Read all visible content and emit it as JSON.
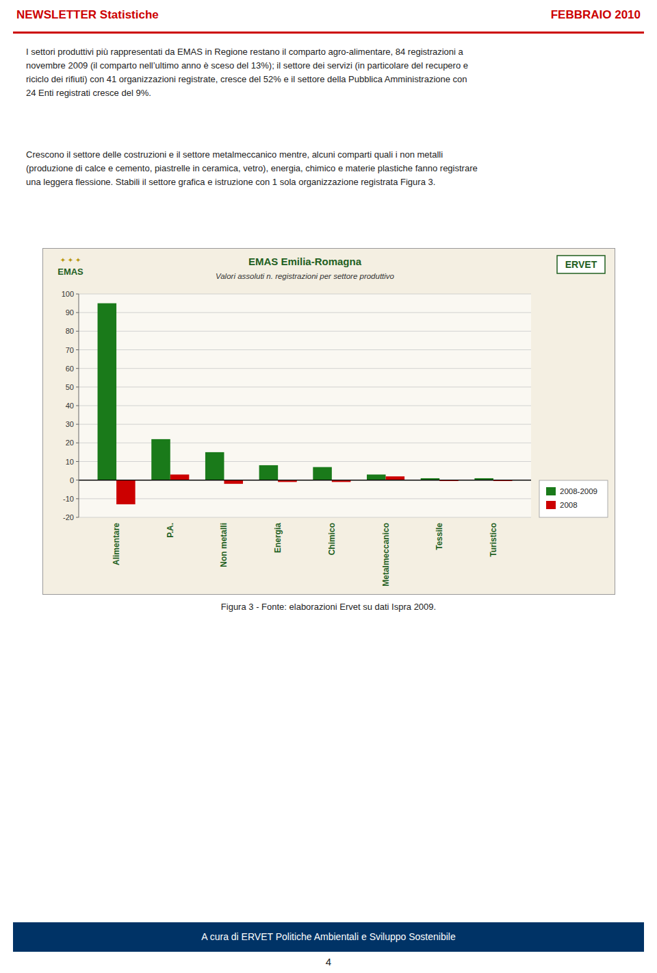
{
  "header_left": "NEWSLETTER Statistiche",
  "header_right": "FEBBRAIO 2010",
  "paragraphs": [
    "I settori produttivi più rappresentati da EMAS in Regione restano il comparto agro-alimentare, 84 registrazioni a\nnovembre 2009 (il comparto nell’ultimo anno è sceso del 13%); il settore dei servizi (in particolare del recupero e\nriciclo dei rifiuti) con 41 organizzazioni registrate, cresce del 52% e il settore della Pubblica Amministrazione con\n24 Enti registrati cresce del 9%.",
    "Crescono il settore delle costruzioni e il settore metalmeccanico mentre, alcuni comparti quali i non metalli\n(produzione di calce e cemento, piastrelle in ceramica, vetro), energia, chimico e materie plastiche fanno registrare\nuna leggera flessione. Stabili il settore grafica e istruzione con 1 sola organizzazione registrata Figura 3."
  ],
  "chart_data": {
    "type": "bar",
    "title": "EMAS Emilia-Romagna",
    "subtitle": "Valori assoluti n. registrazioni per settore produttivo",
    "annotations": [
      "✦ ✦ ✦",
      "EMAS",
      "ERVET"
    ],
    "categories": [
      "Alimentare",
      "P.A.",
      "Non metalli",
      "Energia",
      "Chimico",
      "Metalmeccanico",
      "Tessile",
      "Turistico"
    ],
    "series": [
      {
        "name": "2008-2009",
        "color": "#1a7a1a",
        "values": [
          95,
          22,
          15,
          8,
          7,
          3,
          1,
          1
        ]
      },
      {
        "name": "2008",
        "color": "#cc0000",
        "values": [
          -13,
          3,
          -2,
          -1,
          -1,
          2,
          -0.5,
          -0.5
        ]
      }
    ],
    "ylim": [
      -20,
      100
    ],
    "yticks": [
      -20,
      -10,
      0,
      10,
      20,
      30,
      40,
      50,
      60,
      70,
      80,
      90,
      100
    ],
    "grid": true,
    "legend": "lower right"
  },
  "figure_caption": "Figura 3 - Fonte: elaborazioni Ervet su dati Ispra 2009.",
  "footer_text": "A cura di ERVET Politiche Ambientali e Sviluppo Sostenibile",
  "page_number": "4"
}
